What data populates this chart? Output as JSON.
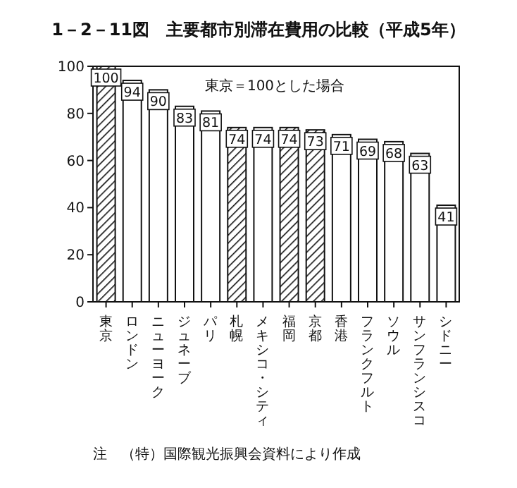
{
  "chart_data": {
    "type": "bar",
    "title": "1－2－11図　主要都市別滞在費用の比較（平成5年）",
    "categories": [
      "東京",
      "ロンドン",
      "ニューヨーク",
      "ジュネーブ",
      "パリ",
      "札幌",
      "メキシコ・シティ",
      "福岡",
      "京都",
      "香港",
      "フランクフルト",
      "ソウル",
      "サンフランシスコ",
      "シドニー"
    ],
    "values": [
      100,
      94,
      90,
      83,
      81,
      74,
      74,
      74,
      73,
      71,
      69,
      68,
      63,
      41
    ],
    "colors": [
      "#111111",
      "#ffffff",
      "#ffffff",
      "#ffffff",
      "#ffffff",
      "#111111",
      "#ffffff",
      "#111111",
      "#111111",
      "#ffffff",
      "#ffffff",
      "#ffffff",
      "#ffffff",
      "#ffffff"
    ],
    "ylim": [
      0,
      100
    ],
    "yticks": [
      0,
      20,
      40,
      60,
      80,
      100
    ],
    "grid": false,
    "data_labels": true,
    "annotations": [
      {
        "text": "東京＝100とした場合"
      },
      {
        "text": "注　（特）国際観光振興会資料により作成"
      }
    ]
  }
}
